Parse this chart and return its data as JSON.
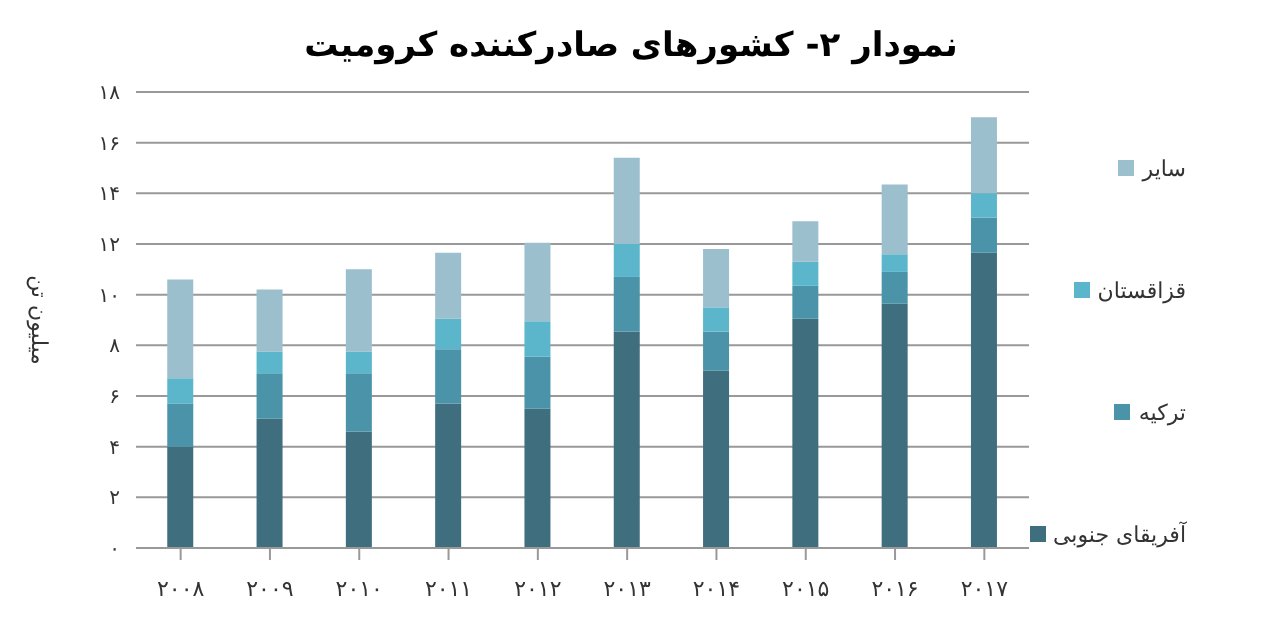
{
  "chart_data": {
    "type": "bar",
    "title": "نمودار ۲- کشورهای صادرکننده کرومیت",
    "ylabel": "میلیون تن",
    "stacked": true,
    "grid": "y",
    "legend": "right",
    "categories": [
      "۲۰۰۸",
      "۲۰۰۹",
      "۲۰۱۰",
      "۲۰۱۱",
      "۲۰۱۲",
      "۲۰۱۳",
      "۲۰۱۴",
      "۲۰۱۵",
      "۲۰۱۶",
      "۲۰۱۷"
    ],
    "ylim": [
      0,
      18
    ],
    "yticks": [
      {
        "value": 0,
        "label": "۰"
      },
      {
        "value": 2,
        "label": "۲"
      },
      {
        "value": 4,
        "label": "۴"
      },
      {
        "value": 6,
        "label": "۶"
      },
      {
        "value": 8,
        "label": "۸"
      },
      {
        "value": 10,
        "label": "۱۰"
      },
      {
        "value": 12,
        "label": "۱۲"
      },
      {
        "value": 14,
        "label": "۱۴"
      },
      {
        "value": 16,
        "label": "۱۶"
      },
      {
        "value": 18,
        "label": "۱۸"
      }
    ],
    "series": [
      {
        "name": "آفریقای جنوبی",
        "color": "#3f6e7e",
        "values": [
          4.0,
          5.1,
          4.6,
          5.7,
          5.5,
          8.55,
          7.0,
          9.05,
          9.65,
          11.65
        ]
      },
      {
        "name": "ترکیه",
        "color": "#4a93a8",
        "values": [
          1.7,
          1.8,
          2.3,
          2.15,
          2.05,
          2.15,
          1.55,
          1.3,
          1.25,
          1.4
        ]
      },
      {
        "name": "قزاقستان",
        "color": "#5bb6cc",
        "values": [
          1.0,
          0.85,
          0.85,
          1.2,
          1.4,
          1.3,
          0.95,
          0.95,
          0.7,
          0.95
        ]
      },
      {
        "name": "سایر",
        "color": "#9cbfce",
        "values": [
          3.9,
          2.45,
          3.25,
          2.6,
          3.1,
          3.4,
          2.3,
          1.6,
          2.75,
          3.0
        ]
      }
    ]
  }
}
